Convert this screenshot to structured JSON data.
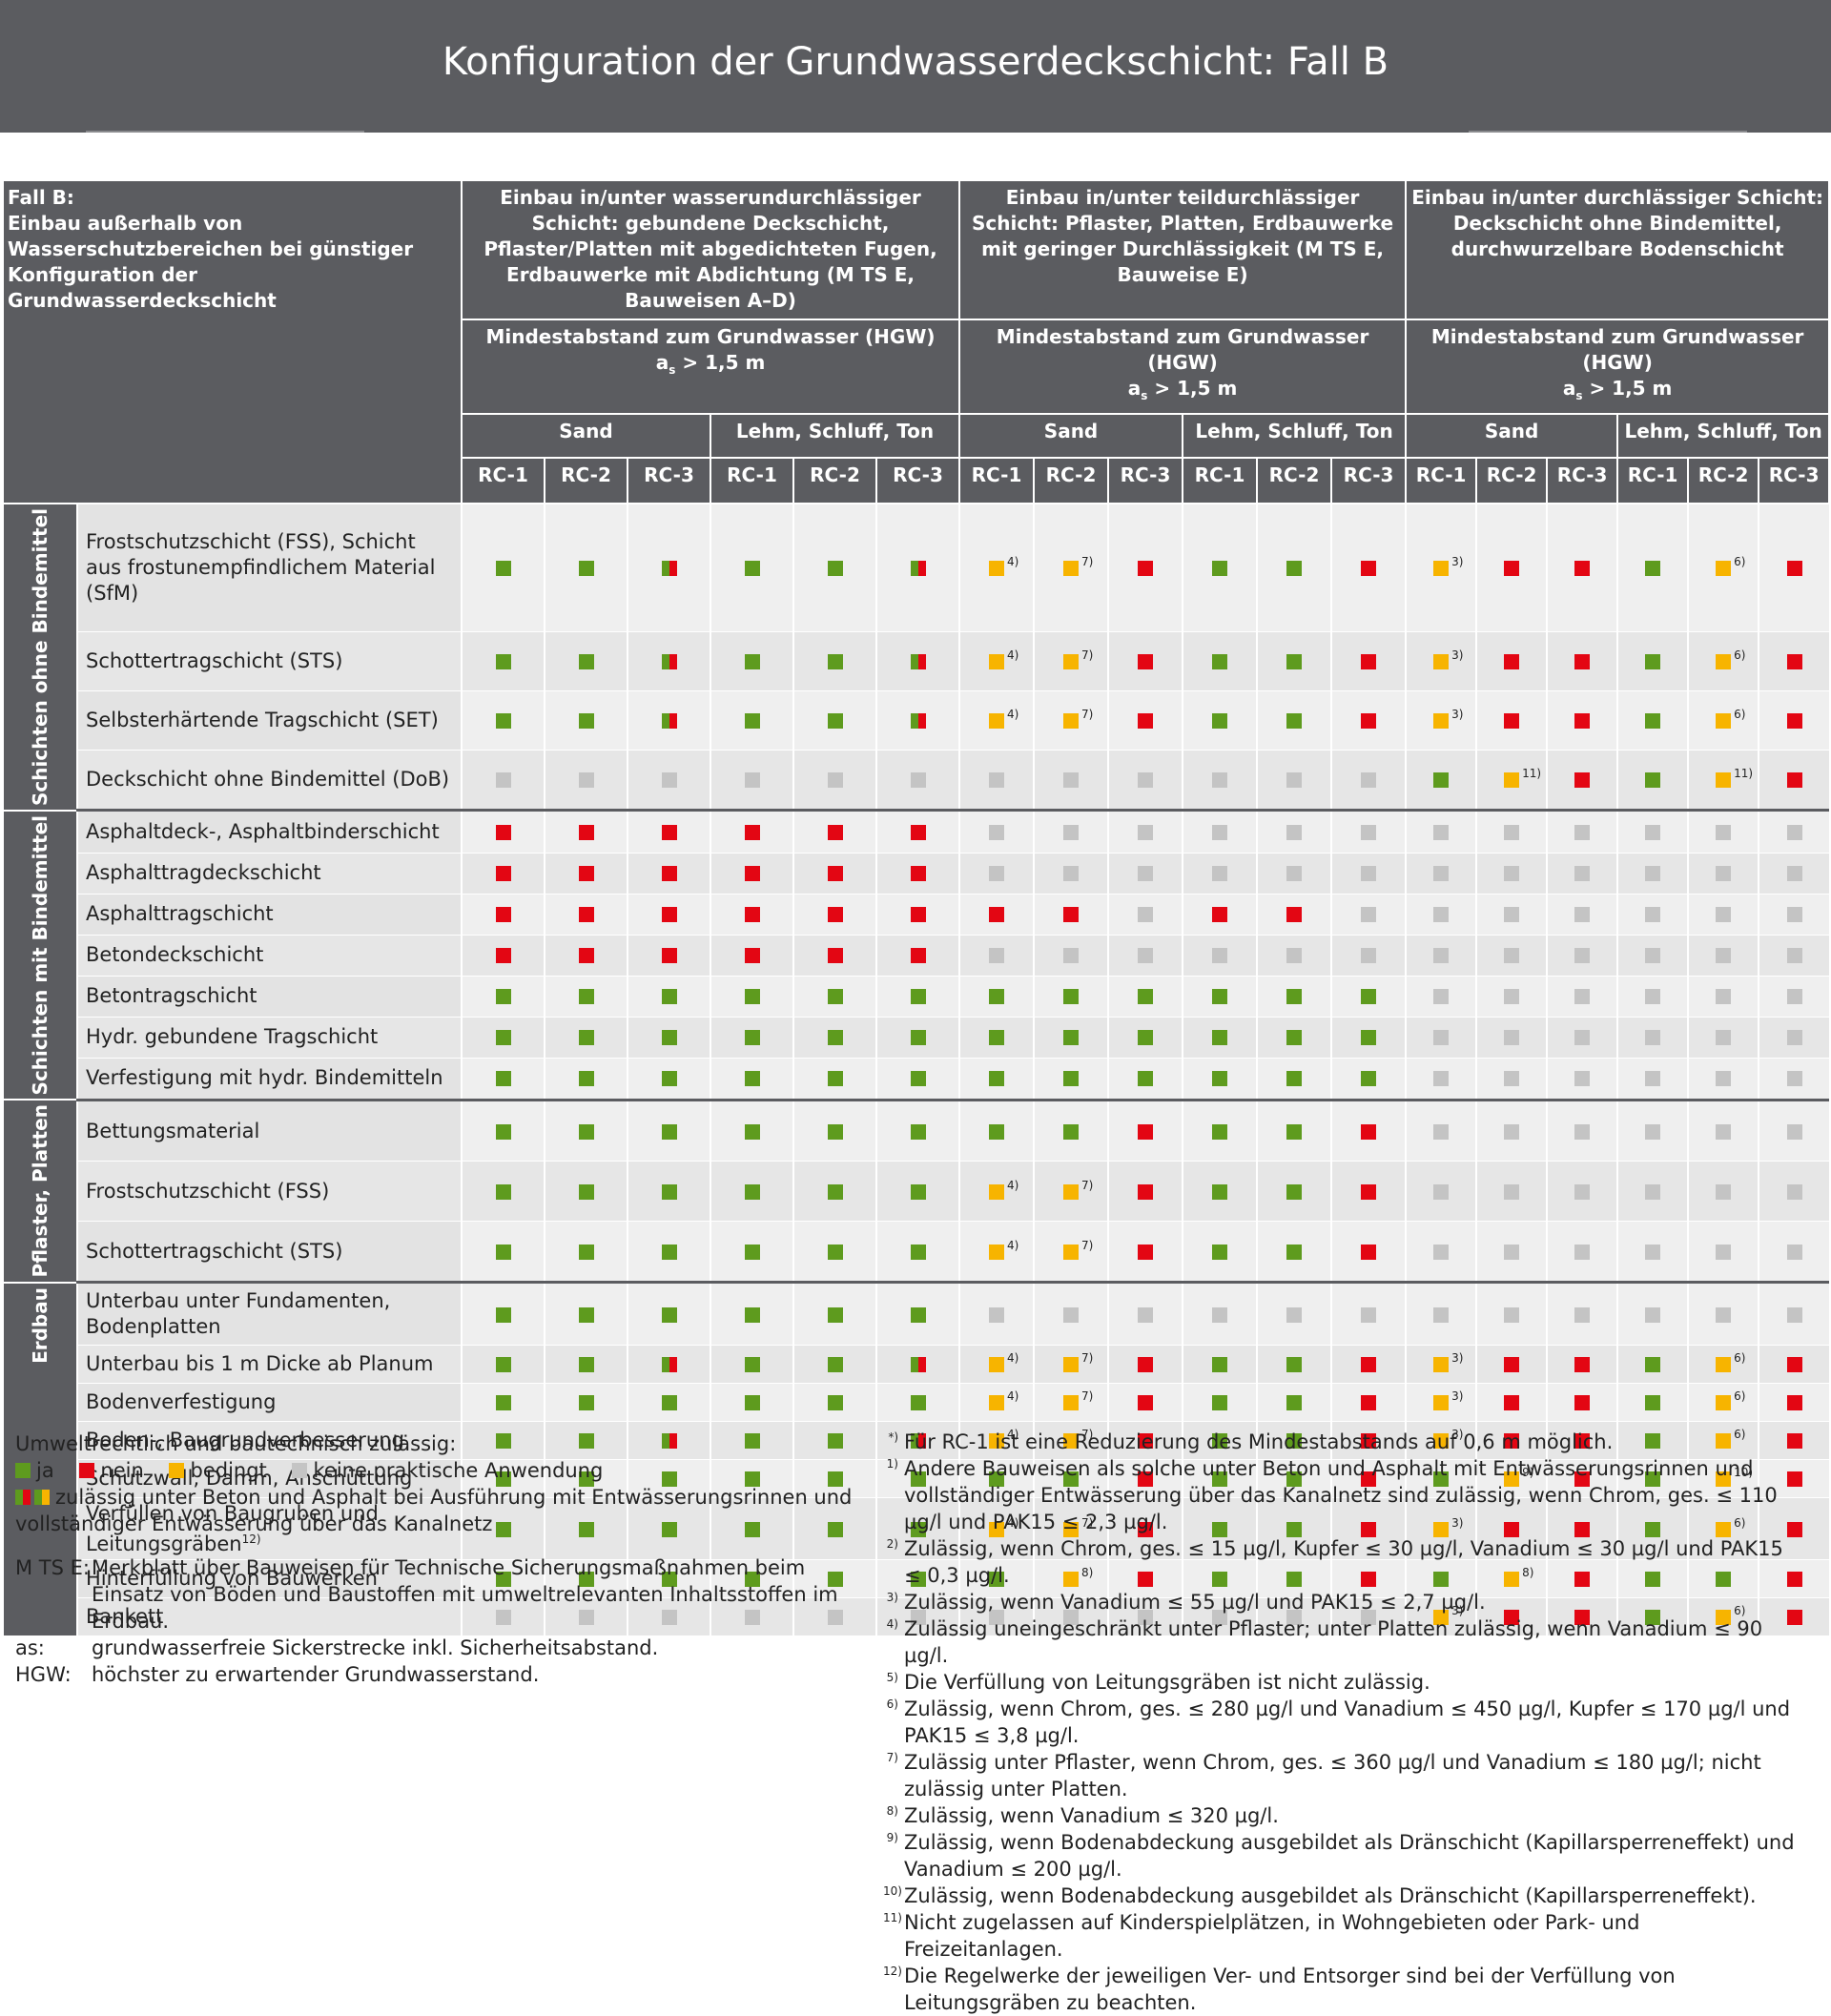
{
  "title": "Konfiguration der Grundwasserdeckschicht: Fall B",
  "colors": {
    "ja": "#5e9b1e",
    "nein": "#e30613",
    "bedingt": "#f7b400",
    "keine": "#c4c4c4",
    "header": "#5b5c60"
  },
  "header": {
    "fall": "Fall B:\nEinbau außerhalb von Wasserschutzbereichen bei günstiger Konfiguration der Grundwasserdeckschicht",
    "groups": [
      "Einbau in/unter wasserundurchlässiger Schicht: gebundene Deckschicht, Pflaster/Platten mit abgedichteten Fugen, Erdbauwerke mit Abdichtung (M TS E, Bauweisen A–D)",
      "Einbau in/unter teildurchlässiger Schicht: Pflaster, Platten, Erdbauwerke mit geringer Durchlässigkeit (M TS E, Bauweise E)",
      "Einbau in/unter durchlässiger Schicht: Deckschicht ohne Bindemittel, durchwurzelbare Bodenschicht"
    ],
    "hgw_label": "Mindestabstand zum Grundwasser (HGW)",
    "hgw_a": "a",
    "hgw_sub": "s",
    "hgw_val": " > 1,5 m",
    "soils": [
      "Sand",
      "Lehm, Schluff, Ton"
    ],
    "rc": [
      "RC-1",
      "RC-2",
      "RC-3"
    ]
  },
  "sections": [
    {
      "label": "Schichten ohne Bindemittel",
      "rows": [
        {
          "label": "Frostschutzschicht (FSS), Schicht aus frostunempfindlichem Material (SfM)",
          "cells": [
            "g",
            "g",
            "gr",
            "g",
            "g",
            "gr",
            "y:4)",
            "y:7)",
            "r",
            "g",
            "g",
            "r",
            "y:3)",
            "r",
            "r",
            "g",
            "y:6)",
            "r"
          ]
        },
        {
          "label": "Schottertragschicht (STS)",
          "cells": [
            "g",
            "g",
            "gr",
            "g",
            "g",
            "gr",
            "y:4)",
            "y:7)",
            "r",
            "g",
            "g",
            "r",
            "y:3)",
            "r",
            "r",
            "g",
            "y:6)",
            "r"
          ]
        },
        {
          "label": "Selbsterhärtende Tragschicht (SET)",
          "cells": [
            "g",
            "g",
            "gr",
            "g",
            "g",
            "gr",
            "y:4)",
            "y:7)",
            "r",
            "g",
            "g",
            "r",
            "y:3)",
            "r",
            "r",
            "g",
            "y:6)",
            "r"
          ]
        },
        {
          "label": "Deckschicht ohne Bindemittel (DoB)",
          "cells": [
            "n",
            "n",
            "n",
            "n",
            "n",
            "n",
            "n",
            "n",
            "n",
            "n",
            "n",
            "n",
            "g",
            "y:11)",
            "r",
            "g",
            "y:11)",
            "r"
          ]
        }
      ]
    },
    {
      "label": "Schichten mit Bindemittel",
      "rows": [
        {
          "label": "Asphaltdeck-, Asphaltbinderschicht",
          "cells": [
            "r",
            "r",
            "r",
            "r",
            "r",
            "r",
            "n",
            "n",
            "n",
            "n",
            "n",
            "n",
            "n",
            "n",
            "n",
            "n",
            "n",
            "n"
          ]
        },
        {
          "label": "Asphalttragdeckschicht",
          "cells": [
            "r",
            "r",
            "r",
            "r",
            "r",
            "r",
            "n",
            "n",
            "n",
            "n",
            "n",
            "n",
            "n",
            "n",
            "n",
            "n",
            "n",
            "n"
          ]
        },
        {
          "label": "Asphalttragschicht",
          "cells": [
            "r",
            "r",
            "r",
            "r",
            "r",
            "r",
            "r",
            "r",
            "n",
            "r",
            "r",
            "n",
            "n",
            "n",
            "n",
            "n",
            "n",
            "n"
          ]
        },
        {
          "label": "Betondeckschicht",
          "cells": [
            "r",
            "r",
            "r",
            "r",
            "r",
            "r",
            "n",
            "n",
            "n",
            "n",
            "n",
            "n",
            "n",
            "n",
            "n",
            "n",
            "n",
            "n"
          ]
        },
        {
          "label": "Betontragschicht",
          "cells": [
            "g",
            "g",
            "g",
            "g",
            "g",
            "g",
            "g",
            "g",
            "g",
            "g",
            "g",
            "g",
            "n",
            "n",
            "n",
            "n",
            "n",
            "n"
          ]
        },
        {
          "label": "Hydr. gebundene Tragschicht",
          "cells": [
            "g",
            "g",
            "g",
            "g",
            "g",
            "g",
            "g",
            "g",
            "g",
            "g",
            "g",
            "g",
            "n",
            "n",
            "n",
            "n",
            "n",
            "n"
          ]
        },
        {
          "label": "Verfestigung mit hydr. Bindemitteln",
          "cells": [
            "g",
            "g",
            "g",
            "g",
            "g",
            "g",
            "g",
            "g",
            "g",
            "g",
            "g",
            "g",
            "n",
            "n",
            "n",
            "n",
            "n",
            "n"
          ]
        }
      ]
    },
    {
      "label": "Pflaster, Platten",
      "rows": [
        {
          "label": "Bettungsmaterial",
          "cells": [
            "g",
            "g",
            "g",
            "g",
            "g",
            "g",
            "g",
            "g",
            "r",
            "g",
            "g",
            "r",
            "n",
            "n",
            "n",
            "n",
            "n",
            "n"
          ]
        },
        {
          "label": "Frostschutzschicht (FSS)",
          "cells": [
            "g",
            "g",
            "g",
            "g",
            "g",
            "g",
            "y:4)",
            "y:7)",
            "r",
            "g",
            "g",
            "r",
            "n",
            "n",
            "n",
            "n",
            "n",
            "n"
          ]
        },
        {
          "label": "Schottertragschicht (STS)",
          "cells": [
            "g",
            "g",
            "g",
            "g",
            "g",
            "g",
            "y:4)",
            "y:7)",
            "r",
            "g",
            "g",
            "r",
            "n",
            "n",
            "n",
            "n",
            "n",
            "n"
          ]
        }
      ]
    },
    {
      "label": "Erdbau",
      "rows": [
        {
          "label": "Unterbau unter Fundamenten, Bodenplatten",
          "cells": [
            "g",
            "g",
            "g",
            "g",
            "g",
            "g",
            "n",
            "n",
            "n",
            "n",
            "n",
            "n",
            "n",
            "n",
            "n",
            "n",
            "n",
            "n"
          ]
        },
        {
          "label": "Unterbau bis 1 m Dicke ab Planum",
          "cells": [
            "g",
            "g",
            "gr",
            "g",
            "g",
            "gr",
            "y:4)",
            "y:7)",
            "r",
            "g",
            "g",
            "r",
            "y:3)",
            "r",
            "r",
            "g",
            "y:6)",
            "r"
          ]
        },
        {
          "label": "Bodenverfestigung",
          "cells": [
            "g",
            "g",
            "g",
            "g",
            "g",
            "g",
            "y:4)",
            "y:7)",
            "r",
            "g",
            "g",
            "r",
            "y:3)",
            "r",
            "r",
            "g",
            "y:6)",
            "r"
          ]
        },
        {
          "label": "Boden-, Baugrundverbesserung",
          "cells": [
            "g",
            "g",
            "gr",
            "g",
            "g",
            "gr",
            "y:4)",
            "y:7)",
            "r",
            "g",
            "g",
            "r",
            "y:3)",
            "r",
            "r",
            "g",
            "y:6)",
            "r"
          ]
        },
        {
          "label": "Schutzwall, Damm, Anschüttung",
          "cells": [
            "g",
            "g",
            "g",
            "g",
            "g",
            "g",
            "g",
            "g",
            "r",
            "g",
            "g",
            "r",
            "g",
            "y:9)",
            "r",
            "g",
            "y:10)",
            "r"
          ]
        },
        {
          "label": "Verfüllen von Baugruben und Leitungsgräben",
          "note": "12)",
          "cells": [
            "g",
            "g",
            "g",
            "g",
            "g",
            "g",
            "y:4)",
            "y:7)",
            "r",
            "g",
            "g",
            "r",
            "y:3)",
            "r",
            "r",
            "g",
            "y:6)",
            "r"
          ]
        },
        {
          "label": "Hinterfüllung von Bauwerken",
          "cells": [
            "g",
            "g",
            "g",
            "g",
            "g",
            "g",
            "g",
            "y:8)",
            "r",
            "g",
            "g",
            "r",
            "g",
            "y:8)",
            "r",
            "g",
            "g",
            "r"
          ]
        },
        {
          "label": "Bankett",
          "cells": [
            "n",
            "n",
            "n",
            "n",
            "n",
            "n",
            "n",
            "n",
            "n",
            "n",
            "n",
            "n",
            "y:3)",
            "r",
            "r",
            "g",
            "y:6)",
            "r"
          ]
        }
      ]
    }
  ],
  "legend": {
    "intro": "Umweltrechtlich und bautechnisch zulässig:",
    "ja": "ja",
    "nein": "nein",
    "bedingt": "bedingt",
    "keine": "keine praktische Anwendung",
    "mixed": "zulässig unter Beton und Asphalt bei Ausführung mit Entwässerungsrinnen und vollständiger Entwässerung über das Kanalnetz",
    "defs": [
      {
        "k": "M TS E:",
        "v": "Merkblatt über Bauweisen für Technische Sicherungsmaßnahmen beim Einsatz von Böden und Baustoffen mit umweltrelevanten Inhaltsstoffen im Erdbau."
      },
      {
        "k": "as:",
        "v": "grundwasserfreie Sickerstrecke inkl. Sicherheitsabstand."
      },
      {
        "k": "HGW:",
        "v": "höchster zu erwartender Grundwasserstand."
      }
    ]
  },
  "footnotes": [
    {
      "k": "*)",
      "t": "Für RC-1 ist eine Reduzierung des Mindestabstands auf 0,6 m möglich."
    },
    {
      "k": "1)",
      "t": "Andere Bauweisen als solche unter Beton und Asphalt mit Entwässerungsrinnen und vollständiger Entwässerung über das Kanalnetz sind zulässig, wenn Chrom, ges. ≤ 110 µg/l und PAK15 ≤ 2,3 µg/l."
    },
    {
      "k": "2)",
      "t": "Zulässig, wenn Chrom, ges. ≤ 15 µg/l, Kupfer ≤ 30 µg/l, Vanadium ≤ 30 µg/l und PAK15 ≤ 0,3 µg/l."
    },
    {
      "k": "3)",
      "t": "Zulässig, wenn Vanadium ≤ 55 µg/l und PAK15 ≤ 2,7 µg/l."
    },
    {
      "k": "4)",
      "t": "Zulässig uneingeschränkt unter Pflaster; unter Platten zulässig, wenn Vanadium ≤ 90 µg/l."
    },
    {
      "k": "5)",
      "t": "Die Verfüllung von Leitungsgräben ist nicht zulässig."
    },
    {
      "k": "6)",
      "t": "Zulässig, wenn Chrom, ges. ≤ 280 µg/l und Vanadium ≤ 450 µg/l, Kupfer ≤ 170 µg/l und PAK15 ≤ 3,8 µg/l."
    },
    {
      "k": "7)",
      "t": "Zulässig unter Pflaster, wenn Chrom, ges. ≤ 360 µg/l und Vanadium ≤ 180 µg/l; nicht zulässig unter Platten."
    },
    {
      "k": "8)",
      "t": "Zulässig, wenn Vanadium ≤ 320 µg/l."
    },
    {
      "k": "9)",
      "t": "Zulässig, wenn Bodenabdeckung ausgebildet als Dränschicht (Kapillarsperreneffekt) und Vanadium ≤ 200 µg/l."
    },
    {
      "k": "10)",
      "t": "Zulässig, wenn Bodenabdeckung ausgebildet als Dränschicht (Kapillarsperreneffekt)."
    },
    {
      "k": "11)",
      "t": "Nicht zugelassen auf Kinderspielplätzen, in Wohngebieten oder Park- und Freizeitanlagen."
    },
    {
      "k": "12)",
      "t": "Die Regelwerke der jeweiligen Ver- und Entsorger sind bei der Verfüllung von Leitungsgräben zu beachten."
    }
  ]
}
